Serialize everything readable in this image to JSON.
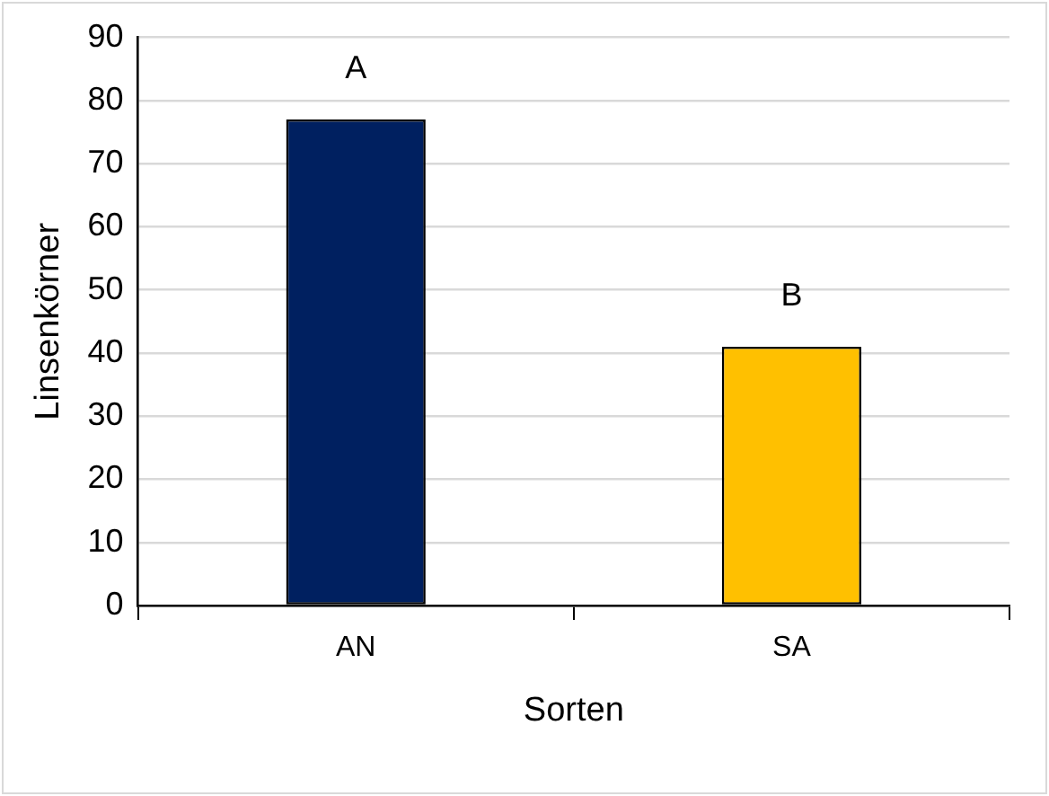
{
  "chart_data": {
    "type": "bar",
    "xlabel": "Sorten",
    "ylabel": "Linsenkörner",
    "categories": [
      "AN",
      "SA"
    ],
    "values": [
      77,
      41
    ],
    "colors": [
      "#002060",
      "#ffc000"
    ],
    "ylim": [
      0,
      90
    ],
    "yticks": [
      0,
      10,
      20,
      30,
      40,
      50,
      60,
      70,
      80,
      90
    ],
    "grid": "y",
    "legend": false,
    "annotations": [
      "A",
      "B"
    ]
  }
}
